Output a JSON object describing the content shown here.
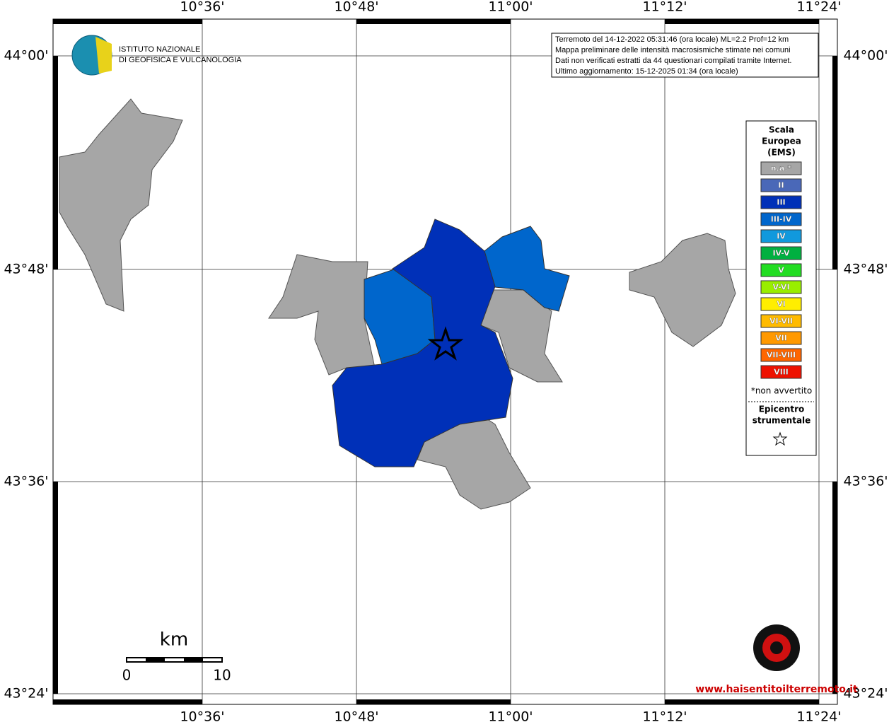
{
  "map": {
    "longitude_labels": [
      "10°36'",
      "10°48'",
      "11°00'",
      "11°12'",
      "11°24'"
    ],
    "latitude_labels": [
      "44°00'",
      "43°48'",
      "43°36'",
      "43°24'"
    ]
  },
  "info": {
    "lines": [
      "Terremoto del 14-12-2022 05:31:46 (ora locale) ML=2.2 Prof=12 km",
      "Mappa preliminare delle intensità macrosismiche stimate nei comuni",
      "Dati non verificati estratti da 44 questionari compilati tramite Internet.",
      "Ultimo aggiornamento: 15-12-2025 01:34 (ora locale)"
    ]
  },
  "logo": {
    "lines": [
      "ISTITUTO NAZIONALE",
      "DI GEOFISICA E VULCANOLOGIA"
    ]
  },
  "legend": {
    "title": [
      "Scala",
      "Europea",
      "(EMS)"
    ],
    "items": [
      {
        "label": "n.a.*",
        "color": "#a6a6a6"
      },
      {
        "label": "II",
        "color": "#4a68b8"
      },
      {
        "label": "III",
        "color": "#0030b8"
      },
      {
        "label": "III-IV",
        "color": "#0066cc"
      },
      {
        "label": "IV",
        "color": "#1199dd"
      },
      {
        "label": "IV-V",
        "color": "#00b040"
      },
      {
        "label": "V",
        "color": "#22dd22"
      },
      {
        "label": "V-VI",
        "color": "#99ee00"
      },
      {
        "label": "VI",
        "color": "#ffee00"
      },
      {
        "label": "VI-VII",
        "color": "#ffbb00"
      },
      {
        "label": "VII",
        "color": "#ff9900"
      },
      {
        "label": "VII-VIII",
        "color": "#ff6600"
      },
      {
        "label": "VIII",
        "color": "#ee1100"
      }
    ],
    "note": "*non avvertito",
    "epicenter": [
      "Epicentro",
      "strumentale"
    ]
  },
  "scale_bar": {
    "unit": "km",
    "start": "0",
    "end": "10"
  },
  "watermark": {
    "site": "www.haisentitoilterremoto.it"
  }
}
